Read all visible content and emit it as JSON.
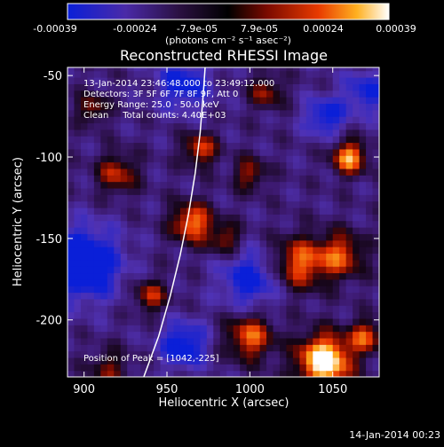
{
  "colorbar": {
    "ticks": [
      "-0.00039",
      "-0.00024",
      "-7.9e-05",
      "7.9e-05",
      "0.00024",
      "0.00039"
    ],
    "units": "(photons cm⁻² s⁻¹ asec⁻²)",
    "range": [
      -0.00039,
      0.00039
    ]
  },
  "chart_data": {
    "type": "heatmap",
    "title": "Reconstructed RHESSI Image",
    "xlabel": "Heliocentric X (arcsec)",
    "ylabel": "Heliocentric Y (arcsec)",
    "xlim": [
      890,
      1078
    ],
    "ylim": [
      -235,
      -45
    ],
    "xticks": [
      900,
      950,
      1000,
      1050
    ],
    "yticks": [
      -50,
      -100,
      -150,
      -200
    ],
    "x_tick_labels": [
      "900",
      "950",
      "1000",
      "1050"
    ],
    "y_tick_labels": [
      "-50",
      "-100",
      "-150",
      "-200"
    ],
    "colormap": "blue-purple-black-red-yellow-white",
    "annotations": [
      "13-Jan-2014 23:46:48.000 to 23:49:12.000",
      "Detectors: 3F 5F 6F 7F 8F 9F, Att 0",
      "Energy Range: 25.0 - 50.0 keV",
      "Clean     Total counts: 4.40E+03"
    ],
    "peak_label": "Position of Peak = [1042,-225]",
    "peak_position": [
      1042,
      -225
    ],
    "limb_curve": [
      [
        936,
        -235
      ],
      [
        945,
        -210
      ],
      [
        952,
        -185
      ],
      [
        958,
        -160
      ],
      [
        963,
        -135
      ],
      [
        967,
        -110
      ],
      [
        970,
        -85
      ],
      [
        972,
        -60
      ],
      [
        973,
        -45
      ]
    ]
  },
  "footer": {
    "timestamp": "14-Jan-2014 00:23"
  }
}
